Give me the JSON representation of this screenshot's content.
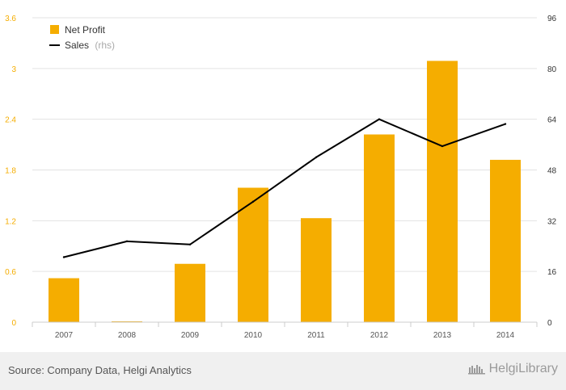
{
  "chart_data": {
    "type": "bar",
    "categories": [
      "2007",
      "2008",
      "2009",
      "2010",
      "2011",
      "2012",
      "2013",
      "2014"
    ],
    "series": [
      {
        "name": "Net Profit",
        "type": "bar",
        "axis": "left",
        "color": "#f5ad00",
        "values": [
          0.52,
          0.01,
          0.69,
          1.59,
          1.23,
          2.22,
          3.09,
          1.92
        ]
      },
      {
        "name": "Sales",
        "name_suffix": "(rhs)",
        "type": "line",
        "axis": "right",
        "color": "#000000",
        "values": [
          20.5,
          25.5,
          24.5,
          38,
          52,
          64,
          55.5,
          62.5
        ]
      }
    ],
    "y_left": {
      "min": 0,
      "max": 3.6,
      "ticks": [
        "0",
        "0.6",
        "1.2",
        "1.8",
        "2.4",
        "3",
        "3.6"
      ],
      "color": "#f5ad00"
    },
    "y_right": {
      "min": 0,
      "max": 96,
      "ticks": [
        "0",
        "16",
        "32",
        "48",
        "64",
        "80",
        "96"
      ],
      "color": "#333333"
    },
    "grid": true,
    "legend": "top-left"
  },
  "footer": {
    "source": "Source: Company Data, Helgi Analytics",
    "brand": "HelgiLibrary"
  },
  "colors": {
    "grid": "#e3e3e3",
    "axis": "#cccccc",
    "footer_bg": "#f0f0f0"
  }
}
